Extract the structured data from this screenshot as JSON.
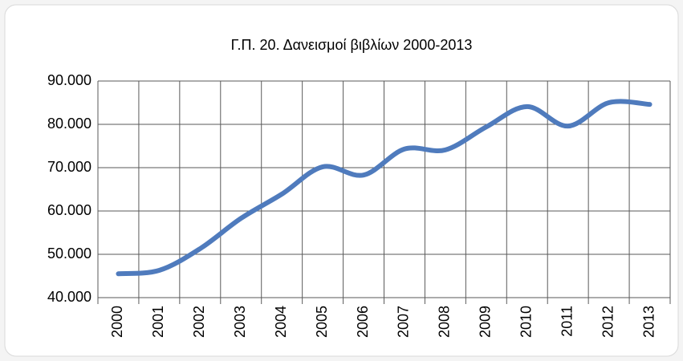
{
  "chart_data": {
    "type": "line",
    "title": "Γ.Π. 20.  Δανεισμοί βιβλίων 2000-2013",
    "categories": [
      "2000",
      "2001",
      "2002",
      "2003",
      "2004",
      "2005",
      "2006",
      "2007",
      "2008",
      "2009",
      "2010",
      "2011",
      "2012",
      "2013"
    ],
    "values": [
      45500,
      46300,
      51300,
      58300,
      63900,
      70200,
      68300,
      74300,
      74100,
      79400,
      84100,
      79600,
      85000,
      84600
    ],
    "color": "#4f7bbd",
    "ylim": [
      40000,
      90000
    ],
    "yticks": [
      {
        "value": 40000,
        "label": "40.000"
      },
      {
        "value": 50000,
        "label": "50.000"
      },
      {
        "value": 60000,
        "label": "60.000"
      },
      {
        "value": 70000,
        "label": "70.000"
      },
      {
        "value": 80000,
        "label": "80.000"
      },
      {
        "value": 90000,
        "label": "90.000"
      }
    ],
    "grid": true
  }
}
